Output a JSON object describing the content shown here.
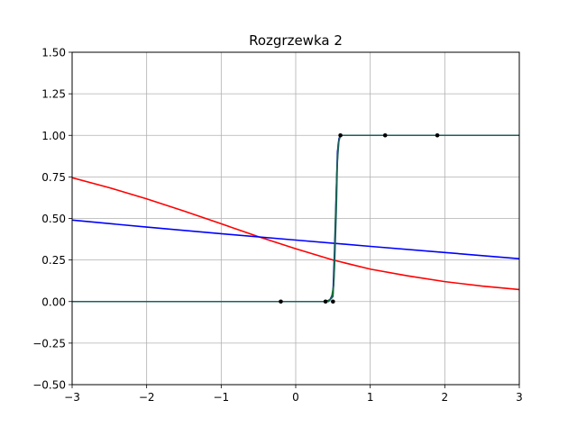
{
  "chart_data": {
    "type": "line",
    "title": "Rozgrzewka 2",
    "xlim": [
      -3,
      3
    ],
    "ylim": [
      -0.5,
      1.5
    ],
    "grid": true,
    "x_ticks": [
      -3,
      -2,
      -1,
      0,
      1,
      2,
      3
    ],
    "x_tick_labels": [
      "−3",
      "−2",
      "−1",
      "0",
      "1",
      "2",
      "3"
    ],
    "y_ticks": [
      -0.5,
      -0.25,
      0.0,
      0.25,
      0.5,
      0.75,
      1.0,
      1.25,
      1.5
    ],
    "y_tick_labels": [
      "−0.50",
      "−0.25",
      "0.00",
      "0.25",
      "0.50",
      "0.75",
      "1.00",
      "1.25",
      "1.50"
    ],
    "series": [
      {
        "color": "#ff0000",
        "style": "line",
        "x": [
          -3,
          -2.5,
          -2,
          -1.5,
          -1,
          -0.5,
          0,
          0.5,
          1,
          1.5,
          2,
          2.5,
          3
        ],
        "y": [
          0.745,
          0.685,
          0.618,
          0.545,
          0.468,
          0.39,
          0.318,
          0.25,
          0.195,
          0.155,
          0.12,
          0.093,
          0.072
        ]
      },
      {
        "color": "#0000ff",
        "style": "line",
        "x": [
          -3,
          -2,
          -1,
          0,
          1,
          2,
          3
        ],
        "y": [
          0.49,
          0.448,
          0.408,
          0.37,
          0.332,
          0.295,
          0.258
        ]
      },
      {
        "color": "#0000cc",
        "style": "line",
        "x": [
          -3,
          0.4,
          0.46,
          0.5,
          0.52,
          0.54,
          0.56,
          0.58,
          0.6,
          3
        ],
        "y": [
          0,
          0,
          0.01,
          0.05,
          0.3,
          0.6,
          0.9,
          0.98,
          1,
          1
        ]
      },
      {
        "color": "#008000",
        "style": "line",
        "x": [
          -3,
          0.42,
          0.48,
          0.51,
          0.53,
          0.55,
          0.57,
          0.6,
          3
        ],
        "y": [
          0,
          0,
          0.02,
          0.1,
          0.4,
          0.75,
          0.95,
          1,
          1
        ]
      },
      {
        "color": "#1f5f5f",
        "style": "line",
        "x": [
          -3,
          0.44,
          0.5,
          0.52,
          0.545,
          0.56,
          0.58,
          0.6,
          3
        ],
        "y": [
          0,
          0,
          0.03,
          0.2,
          0.55,
          0.85,
          0.97,
          1,
          1
        ]
      },
      {
        "color": "#000000",
        "style": "markers",
        "x": [
          -0.2,
          0.4,
          0.5,
          0.6,
          1.2,
          1.9
        ],
        "y": [
          0,
          0,
          0,
          1,
          1,
          1
        ]
      }
    ]
  }
}
